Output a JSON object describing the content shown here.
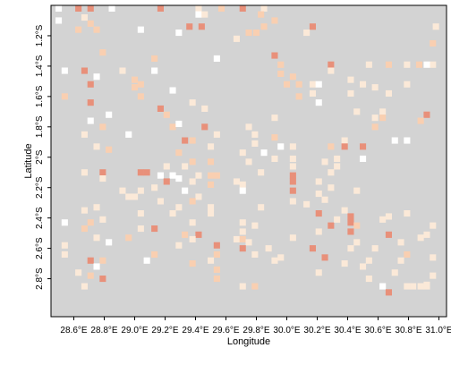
{
  "chart_data": {
    "type": "heatmap",
    "title": "",
    "xlabel": "Longitude",
    "ylabel": "Latitude",
    "xlim": [
      28.45,
      31.05
    ],
    "ylim": [
      -3.05,
      -1.0
    ],
    "x_ticks": [
      {
        "value": 28.6,
        "label": "28.6°E"
      },
      {
        "value": 28.8,
        "label": "28.8°E"
      },
      {
        "value": 29.0,
        "label": "29.0°E"
      },
      {
        "value": 29.2,
        "label": "29.2°E"
      },
      {
        "value": 29.4,
        "label": "29.4°E"
      },
      {
        "value": 29.6,
        "label": "29.6°E"
      },
      {
        "value": 29.8,
        "label": "29.8°E"
      },
      {
        "value": 30.0,
        "label": "30.0°E"
      },
      {
        "value": 30.2,
        "label": "30.2°E"
      },
      {
        "value": 30.4,
        "label": "30.4°E"
      },
      {
        "value": 30.6,
        "label": "30.6°E"
      },
      {
        "value": 30.8,
        "label": "30.8°E"
      },
      {
        "value": 31.0,
        "label": "31.0°E"
      }
    ],
    "y_ticks": [
      {
        "value": -1.2,
        "label": "1.2°S"
      },
      {
        "value": -1.4,
        "label": "1.4°S"
      },
      {
        "value": -1.6,
        "label": "1.6°S"
      },
      {
        "value": -1.8,
        "label": "1.8°S"
      },
      {
        "value": -2.0,
        "label": "2°S"
      },
      {
        "value": -2.2,
        "label": "2.2°S"
      },
      {
        "value": -2.4,
        "label": "2.4°S"
      },
      {
        "value": -2.6,
        "label": "2.6°S"
      },
      {
        "value": -2.8,
        "label": "2.8°S"
      }
    ],
    "grid": false,
    "legend": "none",
    "cell_size_deg": 0.0417,
    "colors": {
      "background": "#d3d3d3",
      "level_0": "#ffffff",
      "level_1": "#fbe9d8",
      "level_2": "#f9cfb1",
      "level_3": "#e8907a"
    },
    "cells": [
      [
        28.5,
        -1.02,
        0
      ],
      [
        28.63,
        -1.02,
        3
      ],
      [
        28.71,
        -1.02,
        3
      ],
      [
        28.85,
        -1.02,
        0
      ],
      [
        29.17,
        -1.02,
        3
      ],
      [
        29.42,
        -1.02,
        1
      ],
      [
        29.71,
        -1.02,
        3
      ],
      [
        29.85,
        -1.02,
        1
      ],
      [
        29.57,
        -1.02,
        2
      ],
      [
        29.42,
        -1.06,
        0
      ],
      [
        29.83,
        -1.06,
        2
      ],
      [
        28.67,
        -1.08,
        1
      ],
      [
        29.46,
        -1.06,
        1
      ],
      [
        28.5,
        -1.1,
        0
      ],
      [
        28.71,
        -1.12,
        2
      ],
      [
        29.36,
        -1.14,
        3
      ],
      [
        29.44,
        -1.14,
        3
      ],
      [
        28.63,
        -1.16,
        2
      ],
      [
        28.75,
        -1.16,
        2
      ],
      [
        29.85,
        -1.14,
        2
      ],
      [
        29.92,
        -1.1,
        2
      ],
      [
        30.17,
        -1.14,
        3
      ],
      [
        30.98,
        -1.14,
        1
      ],
      [
        29.04,
        -1.16,
        0
      ],
      [
        29.75,
        -1.18,
        2
      ],
      [
        29.8,
        -1.18,
        2
      ],
      [
        30.13,
        -1.18,
        1
      ],
      [
        29.67,
        -1.22,
        1
      ],
      [
        30.96,
        -1.25,
        2
      ],
      [
        29.29,
        -1.18,
        0
      ],
      [
        28.79,
        -1.31,
        2
      ],
      [
        29.13,
        -1.35,
        2
      ],
      [
        29.92,
        -1.33,
        3
      ],
      [
        30.67,
        -1.39,
        2
      ],
      [
        30.87,
        -1.39,
        2
      ],
      [
        30.96,
        -1.39,
        1
      ],
      [
        30.79,
        -1.39,
        1
      ],
      [
        30.92,
        -1.39,
        0
      ],
      [
        30.54,
        -1.39,
        1
      ],
      [
        29.54,
        -1.35,
        0
      ],
      [
        29.96,
        -1.39,
        2
      ],
      [
        29.96,
        -1.45,
        2
      ],
      [
        30.29,
        -1.39,
        3
      ],
      [
        30.29,
        -1.43,
        1
      ],
      [
        28.54,
        -1.43,
        0
      ],
      [
        28.67,
        -1.43,
        3
      ],
      [
        28.92,
        -1.43,
        1
      ],
      [
        29.13,
        -1.43,
        0
      ],
      [
        30.04,
        -1.47,
        2
      ],
      [
        30.08,
        -1.52,
        2
      ],
      [
        28.71,
        -1.52,
        3
      ],
      [
        28.75,
        -1.47,
        0
      ],
      [
        29.0,
        -1.49,
        2
      ],
      [
        29.0,
        -1.54,
        2
      ],
      [
        29.04,
        -1.52,
        2
      ],
      [
        30.0,
        -1.52,
        2
      ],
      [
        30.17,
        -1.52,
        1
      ],
      [
        30.21,
        -1.52,
        0
      ],
      [
        30.5,
        -1.52,
        1
      ],
      [
        30.79,
        -1.52,
        1
      ],
      [
        30.42,
        -1.49,
        1
      ],
      [
        30.58,
        -1.54,
        1
      ],
      [
        30.67,
        -1.58,
        1
      ],
      [
        30.17,
        -1.58,
        1
      ],
      [
        29.25,
        -1.56,
        0
      ],
      [
        30.42,
        -1.58,
        1
      ],
      [
        28.54,
        -1.6,
        2
      ],
      [
        28.71,
        -1.64,
        3
      ],
      [
        29.04,
        -1.6,
        2
      ],
      [
        30.08,
        -1.6,
        2
      ],
      [
        29.38,
        -1.64,
        1
      ],
      [
        30.21,
        -1.64,
        0
      ],
      [
        29.17,
        -1.68,
        3
      ],
      [
        29.46,
        -1.68,
        1
      ],
      [
        30.46,
        -1.7,
        1
      ],
      [
        30.63,
        -1.7,
        1
      ],
      [
        30.92,
        -1.72,
        3
      ],
      [
        28.83,
        -1.72,
        0
      ],
      [
        29.21,
        -1.72,
        2
      ],
      [
        30.58,
        -1.74,
        1
      ],
      [
        28.71,
        -1.76,
        0
      ],
      [
        29.92,
        -1.74,
        1
      ],
      [
        30.63,
        -1.74,
        2
      ],
      [
        30.58,
        -1.8,
        2
      ],
      [
        28.79,
        -1.8,
        2
      ],
      [
        29.25,
        -1.8,
        2
      ],
      [
        29.29,
        -1.78,
        0
      ],
      [
        29.46,
        -1.8,
        3
      ],
      [
        29.75,
        -1.8,
        1
      ],
      [
        30.88,
        -1.76,
        2
      ],
      [
        28.67,
        -1.85,
        1
      ],
      [
        28.96,
        -1.85,
        0
      ],
      [
        29.54,
        -1.85,
        1
      ],
      [
        29.33,
        -1.89,
        3
      ],
      [
        29.79,
        -1.85,
        1
      ],
      [
        29.92,
        -1.87,
        2
      ],
      [
        30.38,
        -1.89,
        1
      ],
      [
        29.38,
        -1.89,
        2
      ],
      [
        30.71,
        -1.89,
        0
      ],
      [
        30.79,
        -1.89,
        0
      ],
      [
        28.75,
        -1.93,
        1
      ],
      [
        29.5,
        -1.93,
        1
      ],
      [
        29.79,
        -1.91,
        1
      ],
      [
        29.96,
        -1.93,
        0
      ],
      [
        30.04,
        -1.93,
        1
      ],
      [
        30.29,
        -1.93,
        2
      ],
      [
        30.38,
        -1.93,
        3
      ],
      [
        30.5,
        -1.93,
        3
      ],
      [
        28.83,
        -1.95,
        2
      ],
      [
        29.29,
        -1.97,
        2
      ],
      [
        29.71,
        -1.97,
        1
      ],
      [
        29.85,
        -1.97,
        0
      ],
      [
        29.38,
        -2.03,
        2
      ],
      [
        29.5,
        -2.03,
        2
      ],
      [
        29.75,
        -2.03,
        1
      ],
      [
        29.92,
        -2.01,
        1
      ],
      [
        30.04,
        -2.01,
        1
      ],
      [
        30.25,
        -2.03,
        1
      ],
      [
        30.33,
        -2.01,
        1
      ],
      [
        30.5,
        -2.01,
        0
      ],
      [
        30.04,
        -2.06,
        1
      ],
      [
        29.33,
        -2.06,
        1
      ],
      [
        29.21,
        -2.06,
        1
      ],
      [
        28.67,
        -2.1,
        1
      ],
      [
        28.79,
        -2.1,
        3
      ],
      [
        29.04,
        -2.1,
        3
      ],
      [
        29.08,
        -2.1,
        3
      ],
      [
        29.17,
        -2.12,
        0
      ],
      [
        29.25,
        -2.12,
        0
      ],
      [
        29.42,
        -2.12,
        1
      ],
      [
        29.5,
        -2.12,
        2
      ],
      [
        29.54,
        -2.12,
        2
      ],
      [
        29.83,
        -2.1,
        1
      ],
      [
        30.04,
        -2.12,
        3
      ],
      [
        30.29,
        -2.1,
        1
      ],
      [
        30.33,
        -2.06,
        1
      ],
      [
        28.79,
        -2.14,
        1
      ],
      [
        29.21,
        -2.16,
        3
      ],
      [
        29.29,
        -2.14,
        0
      ],
      [
        29.38,
        -2.16,
        1
      ],
      [
        29.5,
        -2.18,
        2
      ],
      [
        29.71,
        -2.18,
        1
      ],
      [
        30.04,
        -2.16,
        3
      ],
      [
        29.67,
        -2.16,
        1
      ],
      [
        30.21,
        -2.16,
        1
      ],
      [
        30.29,
        -2.2,
        1
      ],
      [
        28.92,
        -2.22,
        1
      ],
      [
        29.04,
        -2.22,
        1
      ],
      [
        29.13,
        -2.2,
        1
      ],
      [
        29.33,
        -2.22,
        0
      ],
      [
        29.71,
        -2.22,
        0
      ],
      [
        30.04,
        -2.22,
        3
      ],
      [
        30.21,
        -2.24,
        1
      ],
      [
        30.46,
        -2.22,
        1
      ],
      [
        28.96,
        -2.26,
        1
      ],
      [
        29.0,
        -2.26,
        1
      ],
      [
        29.42,
        -2.26,
        1
      ],
      [
        29.17,
        -2.29,
        1
      ],
      [
        29.38,
        -2.29,
        2
      ],
      [
        30.25,
        -2.28,
        1
      ],
      [
        30.04,
        -2.29,
        1
      ],
      [
        28.75,
        -2.33,
        1
      ],
      [
        29.29,
        -2.33,
        1
      ],
      [
        29.5,
        -2.33,
        1
      ],
      [
        29.83,
        -2.33,
        1
      ],
      [
        30.13,
        -2.31,
        1
      ],
      [
        28.67,
        -2.35,
        1
      ],
      [
        29.04,
        -2.37,
        1
      ],
      [
        29.5,
        -2.37,
        1
      ],
      [
        30.21,
        -2.37,
        3
      ],
      [
        30.38,
        -2.35,
        1
      ],
      [
        30.42,
        -2.39,
        3
      ],
      [
        30.67,
        -2.39,
        1
      ],
      [
        30.79,
        -2.37,
        1
      ],
      [
        28.54,
        -2.43,
        0
      ],
      [
        28.71,
        -2.43,
        2
      ],
      [
        28.79,
        -2.41,
        1
      ],
      [
        29.38,
        -2.43,
        1
      ],
      [
        29.71,
        -2.43,
        1
      ],
      [
        29.79,
        -2.45,
        1
      ],
      [
        30.29,
        -2.45,
        3
      ],
      [
        30.33,
        -2.41,
        1
      ],
      [
        30.42,
        -2.43,
        3
      ],
      [
        30.46,
        -2.45,
        2
      ],
      [
        30.96,
        -2.45,
        1
      ],
      [
        30.63,
        -2.41,
        1
      ],
      [
        29.25,
        -2.37,
        1
      ],
      [
        28.67,
        -2.47,
        2
      ],
      [
        29.04,
        -2.47,
        1
      ],
      [
        29.13,
        -2.47,
        3
      ],
      [
        29.33,
        -2.51,
        2
      ],
      [
        29.71,
        -2.49,
        1
      ],
      [
        29.42,
        -2.51,
        3
      ],
      [
        30.21,
        -2.49,
        1
      ],
      [
        30.42,
        -2.49,
        3
      ],
      [
        30.67,
        -2.51,
        3
      ],
      [
        28.75,
        -2.53,
        1
      ],
      [
        28.96,
        -2.53,
        2
      ],
      [
        29.38,
        -2.54,
        1
      ],
      [
        29.67,
        -2.54,
        1
      ],
      [
        29.71,
        -2.54,
        2
      ],
      [
        30.04,
        -2.53,
        1
      ],
      [
        30.46,
        -2.56,
        1
      ],
      [
        30.75,
        -2.56,
        1
      ],
      [
        30.88,
        -2.53,
        1
      ],
      [
        30.92,
        -2.51,
        1
      ],
      [
        28.83,
        -2.56,
        0
      ],
      [
        29.75,
        -2.56,
        1
      ],
      [
        28.54,
        -2.58,
        1
      ],
      [
        29.29,
        -2.58,
        1
      ],
      [
        29.54,
        -2.58,
        3
      ],
      [
        29.71,
        -2.6,
        3
      ],
      [
        29.88,
        -2.6,
        1
      ],
      [
        30.17,
        -2.6,
        3
      ],
      [
        30.42,
        -2.6,
        1
      ],
      [
        30.58,
        -2.6,
        1
      ],
      [
        28.54,
        -2.64,
        1
      ],
      [
        29.13,
        -2.64,
        2
      ],
      [
        29.54,
        -2.64,
        2
      ],
      [
        29.79,
        -2.64,
        1
      ],
      [
        29.96,
        -2.66,
        1
      ],
      [
        30.25,
        -2.66,
        3
      ],
      [
        30.79,
        -2.64,
        2
      ],
      [
        30.96,
        -2.66,
        1
      ],
      [
        28.71,
        -2.68,
        3
      ],
      [
        28.79,
        -2.68,
        2
      ],
      [
        29.08,
        -2.68,
        0
      ],
      [
        29.5,
        -2.68,
        1
      ],
      [
        29.92,
        -2.68,
        1
      ],
      [
        30.54,
        -2.68,
        1
      ],
      [
        30.75,
        -2.68,
        1
      ],
      [
        28.75,
        -2.72,
        0
      ],
      [
        30.38,
        -2.7,
        1
      ],
      [
        29.38,
        -2.7,
        2
      ],
      [
        30.5,
        -2.72,
        1
      ],
      [
        28.63,
        -2.76,
        1
      ],
      [
        28.71,
        -2.78,
        2
      ],
      [
        29.54,
        -2.74,
        2
      ],
      [
        30.21,
        -2.76,
        1
      ],
      [
        30.71,
        -2.76,
        1
      ],
      [
        30.96,
        -2.78,
        1
      ],
      [
        28.79,
        -2.8,
        3
      ],
      [
        29.54,
        -2.8,
        2
      ],
      [
        30.54,
        -2.8,
        1
      ],
      [
        30.92,
        -2.84,
        1
      ],
      [
        28.67,
        -2.85,
        1
      ],
      [
        29.71,
        -2.85,
        1
      ],
      [
        29.79,
        -2.85,
        2
      ],
      [
        30.63,
        -2.85,
        0
      ],
      [
        30.79,
        -2.85,
        1
      ],
      [
        30.83,
        -2.85,
        1
      ],
      [
        30.88,
        -2.85,
        1
      ],
      [
        30.92,
        -2.85,
        1
      ],
      [
        30.67,
        -2.89,
        3
      ]
    ]
  }
}
